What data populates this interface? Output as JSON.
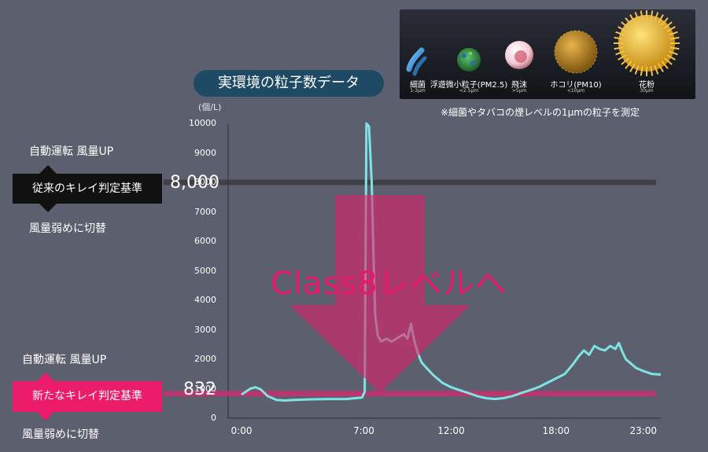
{
  "title": "実環境の粒子数データ",
  "unit": "(個/L)",
  "note": "※細菌やタバコの煙レベルの1μmの粒子を測定",
  "particles": [
    {
      "name": "細菌",
      "size": "1-3μm",
      "icon": "bacteria-icon",
      "color": "#3aa0e0"
    },
    {
      "name": "浮遊微小粒子",
      "tag": "(PM2.5)",
      "size": "<2.5μm",
      "icon": "pm25-icon",
      "color": "#3f9a4a"
    },
    {
      "name": "飛沫",
      "size": ">5μm",
      "icon": "droplet-icon",
      "color": "#e8a4b4"
    },
    {
      "name": "ホコリ",
      "tag": "(PM10)",
      "size": "<10μm",
      "icon": "dust-icon",
      "color": "#c8932a"
    },
    {
      "name": "花粉",
      "size": "30μm",
      "icon": "pollen-icon",
      "color": "#e8c23a"
    }
  ],
  "thresholds": {
    "old": {
      "label": "従来のキレイ判定基準",
      "value": 8000,
      "value_label": "8,000",
      "above": "自動運転 風量UP",
      "below": "風量弱めに切替",
      "color": "#111111"
    },
    "new": {
      "label": "新たなキレイ判定基準",
      "value": 832,
      "value_label": "832",
      "above": "自動運転 風量UP",
      "below": "風量弱めに切替",
      "color": "#ec1c6b"
    }
  },
  "arrow_text": "Class8レベルへ",
  "colors": {
    "background": "#5c606e",
    "line": "#7fe3e4",
    "accent": "#ec1c6b"
  },
  "chart_data": {
    "type": "line",
    "xlabel": "",
    "ylabel": "(個/L)",
    "xlim": [
      0,
      24
    ],
    "ylim": [
      0,
      10000
    ],
    "yticks": [
      0,
      1000,
      2000,
      3000,
      4000,
      5000,
      6000,
      7000,
      8000,
      9000,
      10000
    ],
    "xticks": [
      0,
      7,
      12,
      18,
      23
    ],
    "xtick_labels": [
      "0:00",
      "7:00",
      "12:00",
      "18:00",
      "23:00"
    ],
    "grid": false,
    "series": [
      {
        "name": "",
        "x": [
          0,
          0.5,
          0.8,
          1.1,
          1.5,
          2.0,
          2.5,
          3.0,
          4.0,
          5.0,
          6.0,
          6.5,
          6.9,
          7.05,
          7.15,
          7.3,
          7.45,
          7.55,
          7.65,
          7.8,
          8.0,
          8.3,
          8.6,
          9.0,
          9.3,
          9.5,
          9.7,
          9.9,
          10.1,
          10.3,
          10.6,
          11.0,
          11.5,
          12.0,
          12.5,
          13.0,
          13.5,
          14.0,
          14.5,
          15.0,
          15.5,
          16.0,
          16.5,
          17.0,
          17.5,
          18.0,
          18.5,
          19.0,
          19.3,
          19.6,
          19.9,
          20.2,
          20.5,
          20.8,
          21.1,
          21.4,
          21.6,
          21.8,
          22.0,
          22.3,
          22.6,
          23.0,
          23.5,
          24.0
        ],
        "values": [
          800,
          1000,
          1050,
          980,
          750,
          620,
          600,
          620,
          640,
          650,
          650,
          680,
          700,
          900,
          10000,
          9900,
          8000,
          5600,
          3500,
          2800,
          2600,
          2700,
          2600,
          2750,
          2850,
          2700,
          3200,
          2600,
          2200,
          1900,
          1700,
          1450,
          1200,
          1050,
          950,
          850,
          750,
          680,
          650,
          680,
          750,
          850,
          950,
          1050,
          1200,
          1350,
          1500,
          1850,
          2100,
          2300,
          2150,
          2450,
          2350,
          2300,
          2450,
          2350,
          2550,
          2250,
          2000,
          1850,
          1700,
          1600,
          1500,
          1480
        ]
      }
    ]
  }
}
